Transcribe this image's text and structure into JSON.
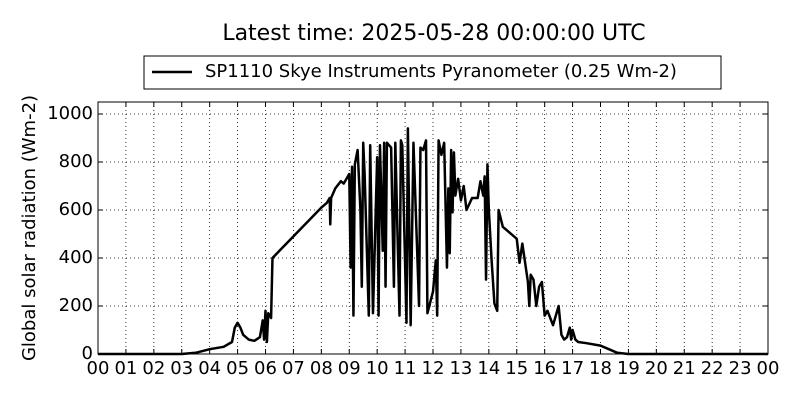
{
  "chart_data": {
    "type": "line",
    "title": "Latest time: 2025-05-28 00:00:00 UTC",
    "y_label": "Global solar radiation (Wm-2)",
    "grid": true,
    "legend": "upper center",
    "xlim": [
      0,
      24
    ],
    "ylim": [
      0,
      1050
    ],
    "xticks": [
      {
        "value": 0,
        "label": "00"
      },
      {
        "value": 1,
        "label": "01"
      },
      {
        "value": 2,
        "label": "02"
      },
      {
        "value": 3,
        "label": "03"
      },
      {
        "value": 4,
        "label": "04"
      },
      {
        "value": 5,
        "label": "05"
      },
      {
        "value": 6,
        "label": "06"
      },
      {
        "value": 7,
        "label": "07"
      },
      {
        "value": 8,
        "label": "08"
      },
      {
        "value": 9,
        "label": "09"
      },
      10,
      11,
      12,
      13,
      14,
      15,
      16,
      17,
      18,
      19,
      20,
      21,
      22,
      23,
      {
        "value": 24,
        "label": "00"
      }
    ],
    "yticks": [
      0,
      200,
      400,
      600,
      800,
      1000
    ],
    "series": [
      {
        "name": "SP1110 Skye Instruments Pyranometer (0.25 Wm-2)",
        "color": "#000000",
        "x": [
          0,
          3,
          3.5,
          4,
          4.5,
          4.8,
          4.9,
          5.0,
          5.1,
          5.2,
          5.4,
          5.6,
          5.8,
          5.9,
          5.95,
          6.0,
          6.05,
          6.1,
          6.2,
          6.25,
          6.5,
          7.0,
          7.5,
          8.0,
          8.2,
          8.3,
          8.32,
          8.35,
          8.5,
          8.7,
          8.8,
          9.0,
          9.05,
          9.1,
          9.15,
          9.2,
          9.3,
          9.4,
          9.45,
          9.5,
          9.55,
          9.7,
          9.75,
          9.85,
          10.0,
          10.05,
          10.1,
          10.2,
          10.25,
          10.3,
          10.35,
          10.5,
          10.6,
          10.65,
          10.8,
          10.85,
          10.9,
          11.05,
          11.1,
          11.2,
          11.3,
          11.5,
          11.55,
          11.65,
          11.75,
          11.8,
          12.0,
          12.1,
          12.15,
          12.2,
          12.3,
          12.4,
          12.5,
          12.55,
          12.6,
          12.65,
          12.7,
          12.75,
          12.8,
          12.9,
          13.0,
          13.1,
          13.2,
          13.4,
          13.6,
          13.7,
          13.8,
          13.85,
          13.9,
          13.95,
          14.0,
          14.1,
          14.2,
          14.3,
          14.35,
          14.5,
          14.7,
          15.0,
          15.1,
          15.2,
          15.4,
          15.45,
          15.5,
          15.6,
          15.7,
          15.8,
          15.9,
          16.0,
          16.1,
          16.3,
          16.5,
          16.6,
          16.7,
          16.8,
          16.9,
          16.95,
          17.0,
          17.1,
          17.2,
          17.5,
          18.0,
          18.3,
          18.6,
          19.0,
          24
        ],
        "values": [
          0,
          0,
          5,
          20,
          30,
          50,
          110,
          130,
          110,
          80,
          60,
          55,
          70,
          140,
          60,
          180,
          50,
          170,
          150,
          400,
          430,
          490,
          550,
          610,
          630,
          650,
          540,
          650,
          690,
          720,
          710,
          750,
          360,
          780,
          160,
          790,
          850,
          600,
          280,
          880,
          750,
          160,
          870,
          170,
          820,
          160,
          870,
          430,
          880,
          280,
          880,
          860,
          280,
          880,
          160,
          890,
          870,
          130,
          940,
          120,
          880,
          200,
          860,
          850,
          890,
          170,
          260,
          390,
          160,
          890,
          830,
          880,
          360,
          690,
          420,
          850,
          590,
          840,
          660,
          730,
          640,
          700,
          600,
          650,
          650,
          720,
          660,
          740,
          310,
          790,
          600,
          390,
          210,
          180,
          600,
          530,
          510,
          480,
          380,
          460,
          300,
          200,
          330,
          310,
          200,
          280,
          300,
          160,
          180,
          120,
          200,
          80,
          60,
          70,
          110,
          60,
          100,
          60,
          50,
          45,
          35,
          20,
          5,
          0,
          0
        ]
      }
    ]
  }
}
